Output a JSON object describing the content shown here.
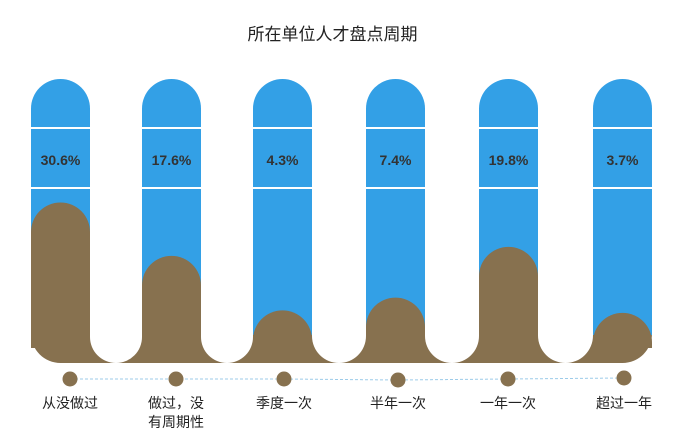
{
  "chart_data": {
    "type": "bar",
    "title": "所在单位人才盘点周期",
    "categories": [
      "从没做过",
      "做过，没有周期性",
      "季度一次",
      "半年一次",
      "一年一次",
      "超过一年"
    ],
    "category_lines": [
      [
        "从没做过"
      ],
      [
        "做过，没",
        "有周期性"
      ],
      [
        "季度一次"
      ],
      [
        "半年一次"
      ],
      [
        "一年一次"
      ],
      [
        "超过一年"
      ]
    ],
    "values": [
      30.6,
      17.6,
      4.3,
      7.4,
      19.8,
      3.7
    ],
    "data_labels": [
      "30.6%",
      "17.6%",
      "4.3%",
      "7.4%",
      "19.8%",
      "3.7%"
    ],
    "unit": "%",
    "colors": {
      "pillar": "#33a0e6",
      "fill": "#87714f",
      "label": "#333333",
      "dot": "#87714f",
      "connector": "#9ccbe9"
    }
  }
}
